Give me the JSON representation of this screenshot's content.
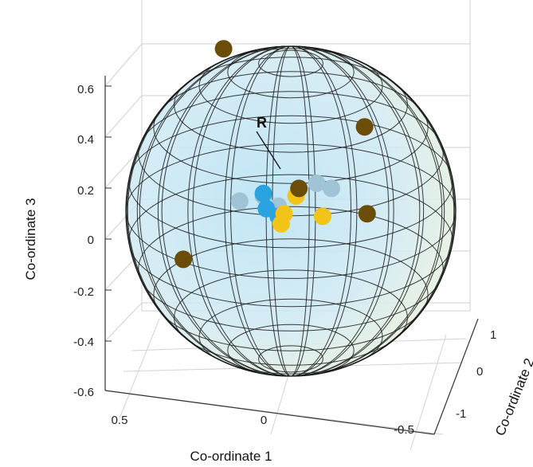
{
  "chart_data": {
    "type": "scatter",
    "projection": "3d",
    "xlabel": "Co-ordinate 1",
    "ylabel": "Co-ordinate 2",
    "zlabel": "Co-ordinate 3",
    "x_ticks": [
      "0.5",
      "0",
      "-0.5"
    ],
    "y_ticks": [
      "1",
      "0",
      "-1"
    ],
    "z_ticks": [
      "0.6",
      "0.4",
      "0.2",
      "0",
      "-0.2",
      "-0.4",
      "-0.6"
    ],
    "grid": true,
    "annotation": "R",
    "sphere": {
      "shown": true,
      "wireframe": true,
      "fill_color": "#cfe8f3",
      "edge_color": "#1a1a1a"
    },
    "colors": {
      "dark_brown": "#6b4c08",
      "gold": "#f2c417",
      "blue": "#29a3e0",
      "light_blue": "#9fc4d6"
    },
    "points": [
      {
        "x": 0.02,
        "y": 0.0,
        "z": 0.17,
        "color": "light_blue"
      },
      {
        "x": 0.1,
        "y": 0.0,
        "z": 0.15,
        "color": "light_blue"
      },
      {
        "x": -0.16,
        "y": 0.0,
        "z": 0.22,
        "color": "light_blue"
      },
      {
        "x": -0.21,
        "y": 0.0,
        "z": 0.2,
        "color": "light_blue"
      },
      {
        "x": -0.03,
        "y": 0.0,
        "z": 0.13,
        "color": "light_blue"
      },
      {
        "x": 0.02,
        "y": 0.0,
        "z": 0.18,
        "color": "blue"
      },
      {
        "x": 0.01,
        "y": 0.0,
        "z": 0.12,
        "color": "blue"
      },
      {
        "x": -0.03,
        "y": 0.0,
        "z": 0.09,
        "color": "blue"
      },
      {
        "x": -0.09,
        "y": 0.0,
        "z": 0.17,
        "color": "gold"
      },
      {
        "x": -0.05,
        "y": 0.0,
        "z": 0.1,
        "color": "gold"
      },
      {
        "x": -0.18,
        "y": 0.0,
        "z": 0.09,
        "color": "gold"
      },
      {
        "x": -0.04,
        "y": 0.0,
        "z": 0.06,
        "color": "gold"
      },
      {
        "x": 0.2,
        "y": 0.85,
        "z": 0.66,
        "color": "dark_brown"
      },
      {
        "x": -0.3,
        "y": 0.4,
        "z": 0.4,
        "color": "dark_brown"
      },
      {
        "x": -0.1,
        "y": 0.0,
        "z": 0.2,
        "color": "dark_brown"
      },
      {
        "x": -0.33,
        "y": 0.0,
        "z": 0.1,
        "color": "dark_brown"
      },
      {
        "x": 0.29,
        "y": 0.0,
        "z": -0.08,
        "color": "dark_brown"
      }
    ]
  }
}
